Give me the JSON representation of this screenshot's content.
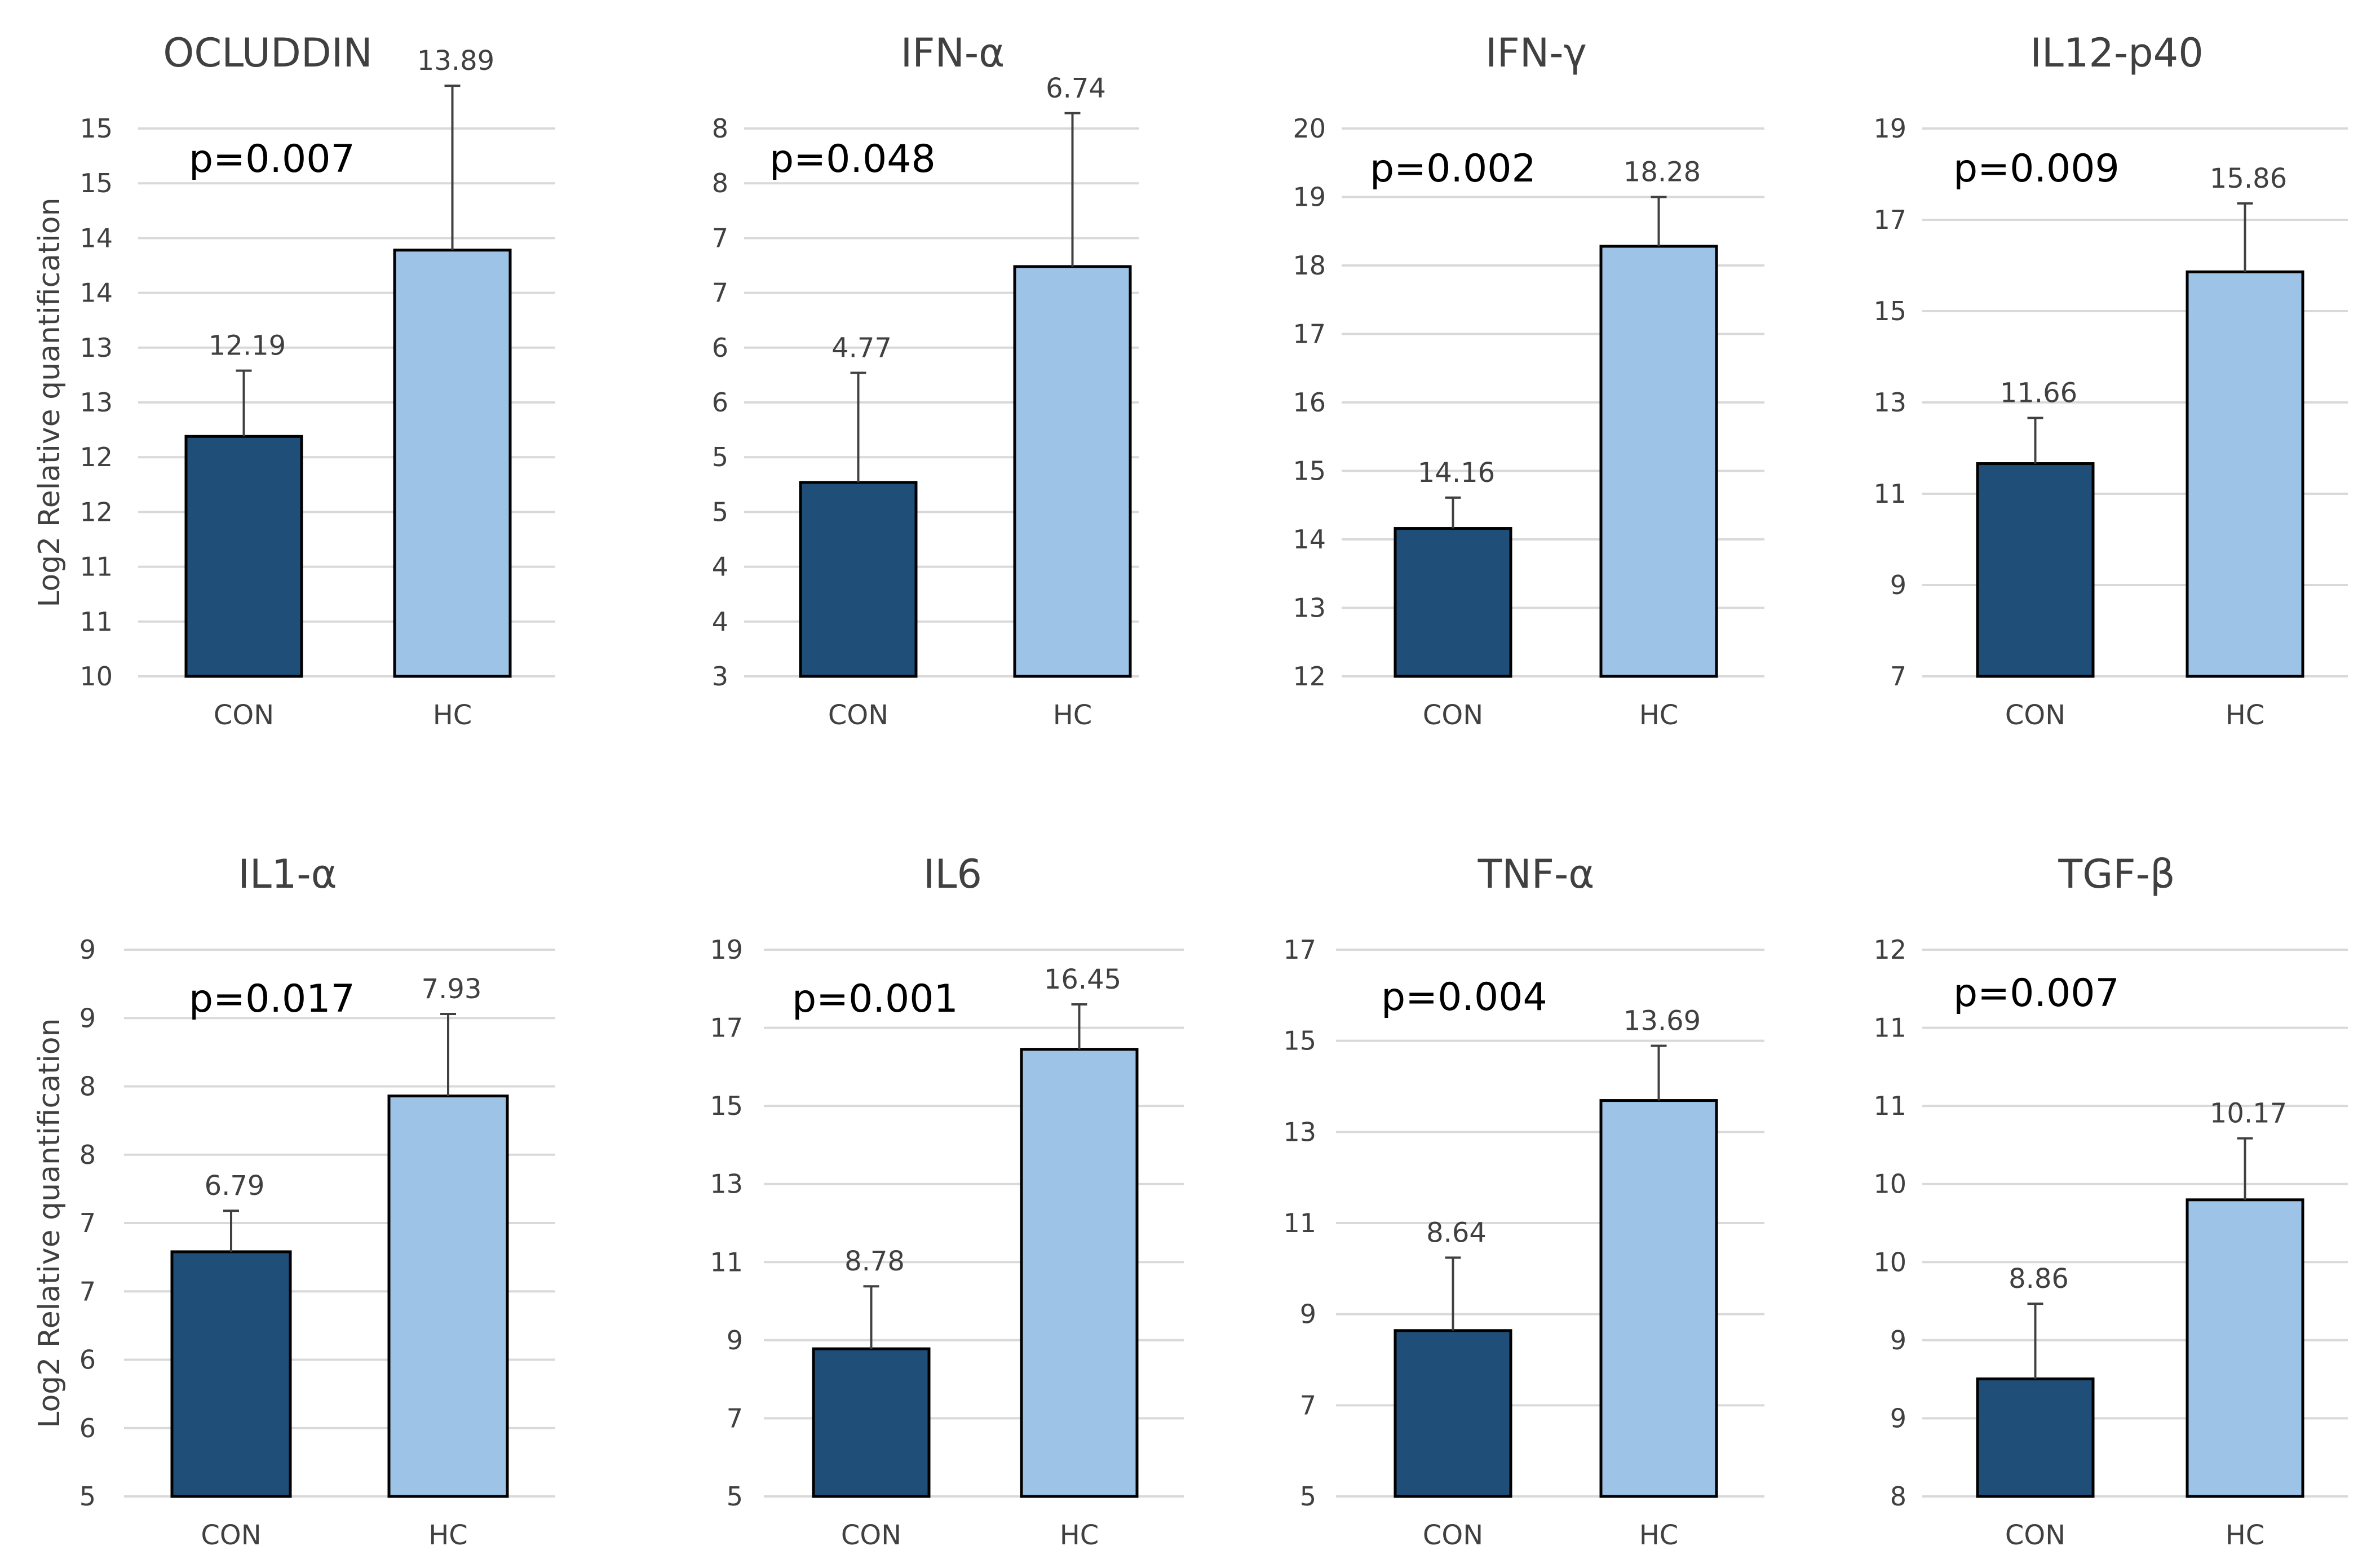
{
  "y_axis_label": "Log2 Relative quantification",
  "colors": {
    "con": "#1f4e79",
    "hc": "#9dc3e6",
    "bar_outline": "#000000",
    "grid": "#d9d9d9"
  },
  "chart_data": [
    {
      "type": "bar",
      "title": "OCLUDDIN",
      "p_value": "p=0.007",
      "categories": [
        "CON",
        "HC"
      ],
      "values": [
        12.19,
        13.89
      ],
      "errors": [
        0.6,
        1.5
      ],
      "ylim": [
        10,
        15
      ],
      "ytick_labels": [
        "10",
        "11",
        "11",
        "12",
        "12",
        "13",
        "13",
        "14",
        "14",
        "15",
        "15"
      ],
      "show_ylabel": true
    },
    {
      "type": "bar",
      "title": "IFN-α",
      "p_value": "p=0.048",
      "categories": [
        "CON",
        "HC"
      ],
      "values": [
        4.77,
        6.74
      ],
      "errors": [
        1.0,
        1.4
      ],
      "ylim": [
        3,
        8
      ],
      "ytick_labels": [
        "3",
        "4",
        "4",
        "5",
        "5",
        "6",
        "6",
        "7",
        "7",
        "8",
        "8"
      ],
      "show_ylabel": false
    },
    {
      "type": "bar",
      "title": "IFN-γ",
      "p_value": "p=0.002",
      "categories": [
        "CON",
        "HC"
      ],
      "values": [
        14.16,
        18.28
      ],
      "errors": [
        0.45,
        0.72
      ],
      "ylim": [
        12,
        20
      ],
      "ytick_labels": [
        "12",
        "13",
        "14",
        "15",
        "16",
        "17",
        "18",
        "19",
        "20"
      ],
      "show_ylabel": false
    },
    {
      "type": "bar",
      "title": "IL12-p40",
      "p_value": "p=0.009",
      "categories": [
        "CON",
        "HC"
      ],
      "values": [
        11.66,
        15.86
      ],
      "errors": [
        1.0,
        1.5
      ],
      "ylim": [
        7,
        19
      ],
      "ytick_labels": [
        "7",
        "9",
        "11",
        "13",
        "15",
        "17",
        "19"
      ],
      "show_ylabel": false
    },
    {
      "type": "bar",
      "title": "IL1-α",
      "p_value": "p=0.017",
      "categories": [
        "CON",
        "HC"
      ],
      "values": [
        6.79,
        7.93
      ],
      "errors": [
        0.3,
        0.6
      ],
      "ylim": [
        5,
        9
      ],
      "ytick_labels": [
        "5",
        "6",
        "6",
        "7",
        "7",
        "8",
        "8",
        "9",
        "9"
      ],
      "show_ylabel": true
    },
    {
      "type": "bar",
      "title": "IL6",
      "p_value": "p=0.001",
      "categories": [
        "CON",
        "HC"
      ],
      "values": [
        8.78,
        16.45
      ],
      "errors": [
        1.6,
        1.15
      ],
      "ylim": [
        5,
        19
      ],
      "ytick_labels": [
        "5",
        "7",
        "9",
        "11",
        "13",
        "15",
        "17",
        "19"
      ],
      "show_ylabel": false
    },
    {
      "type": "bar",
      "title": "TNF-α",
      "p_value": "p=0.004",
      "categories": [
        "CON",
        "HC"
      ],
      "values": [
        8.64,
        13.69
      ],
      "errors": [
        1.6,
        1.2
      ],
      "ylim": [
        5,
        17
      ],
      "ytick_labels": [
        "5",
        "7",
        "9",
        "11",
        "13",
        "15",
        "17"
      ],
      "show_ylabel": false
    },
    {
      "type": "bar",
      "title": "TGF-β",
      "p_value": "p=0.007",
      "categories": [
        "CON",
        "HC"
      ],
      "values": [
        8.86,
        10.17
      ],
      "errors": [
        0.55,
        0.45
      ],
      "ylim": [
        8,
        12
      ],
      "ytick_labels": [
        "8",
        "9",
        "9",
        "10",
        "10",
        "11",
        "11",
        "12"
      ],
      "show_ylabel": false
    }
  ]
}
